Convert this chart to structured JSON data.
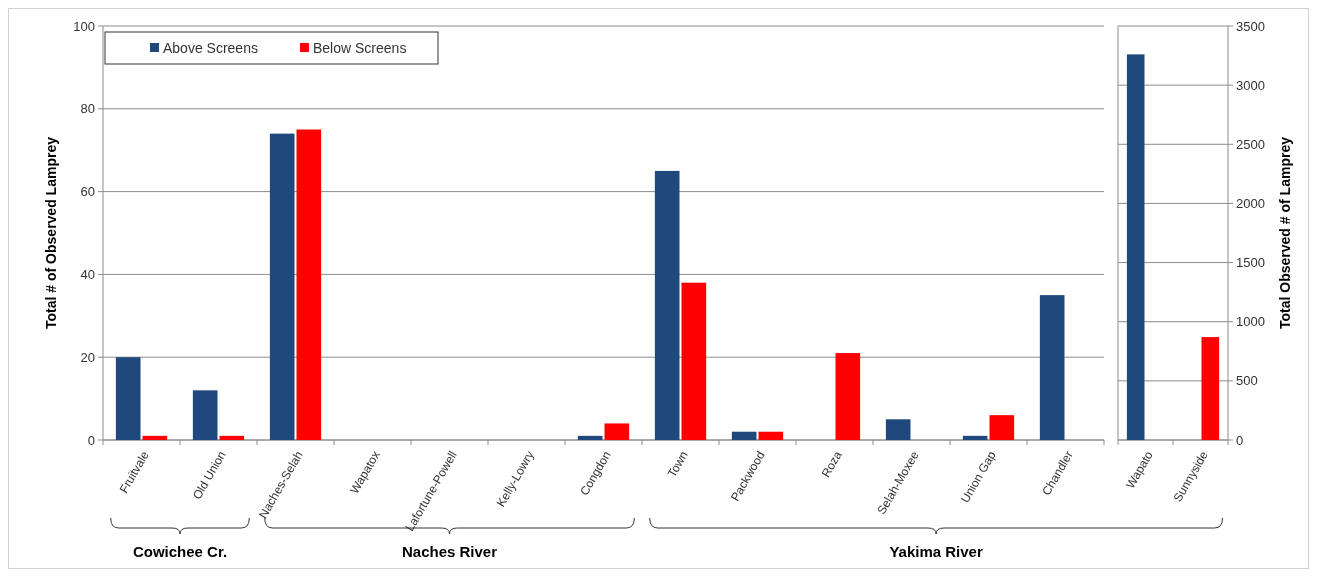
{
  "chart_data": [
    {
      "type": "bar",
      "ylabel": "Total # of Observed Lamprey",
      "categories": [
        "Fruitvale",
        "Old Union",
        "Naches-Selah",
        "Wapatox",
        "Lafortune-Powell",
        "Kelly-Lowry",
        "Congdon",
        "Town",
        "Packwood",
        "Roza",
        "Selah-Moxee",
        "Union Gap",
        "Chandler"
      ],
      "series": [
        {
          "name": "Above Screens",
          "color": "#1f497d",
          "values": [
            20,
            12,
            74,
            0,
            0,
            0,
            1,
            65,
            2,
            0,
            5,
            1,
            35
          ]
        },
        {
          "name": "Below Screens",
          "color": "#ff0000",
          "values": [
            1,
            1,
            75,
            0,
            0,
            0,
            4,
            38,
            2,
            21,
            0,
            6,
            0
          ]
        }
      ],
      "ylim": [
        0,
        100
      ],
      "yticks": [
        0,
        20,
        40,
        60,
        80,
        100
      ],
      "grid": "y",
      "legend": "top left",
      "annotations": [
        "Cowichee Cr.",
        "Naches River",
        "Yakima River"
      ]
    },
    {
      "type": "bar",
      "y2label": "Total Observed # of Lamprey",
      "categories": [
        "Wapato",
        "Sunnyside"
      ],
      "series": [
        {
          "color": "#1f497d",
          "values": [
            3260,
            0
          ],
          "axis": "y2"
        },
        {
          "color": "#ff0000",
          "values": [
            0,
            870
          ],
          "axis": "y2"
        }
      ],
      "y2lim": [
        0,
        3500
      ],
      "y2ticks": [
        0,
        500,
        1000,
        1500,
        2000,
        2500,
        3000,
        3500
      ],
      "grid": "y"
    }
  ]
}
